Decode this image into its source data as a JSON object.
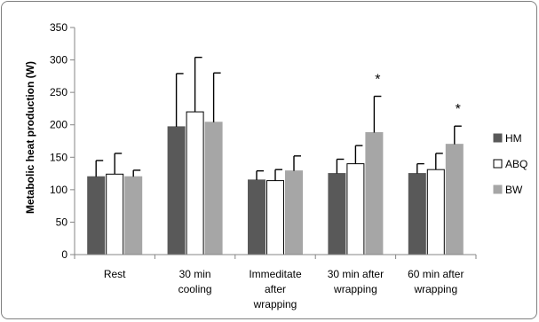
{
  "chart_data": {
    "type": "bar",
    "title": "",
    "xlabel": "",
    "ylabel": "Metabolic heat production (W)",
    "ylim": [
      0,
      350
    ],
    "yticks": [
      0,
      50,
      100,
      150,
      200,
      250,
      300,
      350
    ],
    "grid": false,
    "legend_position": "right",
    "categories": [
      [
        "Rest"
      ],
      [
        "30 min",
        "cooling"
      ],
      [
        "Immeditate",
        "after",
        "wrapping"
      ],
      [
        "30 min after",
        "wrapping"
      ],
      [
        "60 min after",
        "wrapping"
      ]
    ],
    "series": [
      {
        "name": "HM",
        "color": "#595959",
        "fill": "#595959",
        "stroke": "#595959",
        "values": [
          120,
          197,
          115,
          125,
          125
        ],
        "errors": [
          25,
          82,
          14,
          22,
          15
        ]
      },
      {
        "name": "ABQ",
        "color": "#ffffff",
        "fill": "#ffffff",
        "stroke": "#000000",
        "values": [
          124,
          220,
          114,
          140,
          131
        ],
        "errors": [
          32,
          84,
          17,
          28,
          25
        ]
      },
      {
        "name": "BW",
        "color": "#a6a6a6",
        "fill": "#a6a6a6",
        "stroke": "#a6a6a6",
        "values": [
          120,
          204,
          129,
          188,
          170
        ],
        "errors": [
          10,
          76,
          23,
          56,
          28
        ]
      }
    ],
    "annotations": [
      {
        "series": 2,
        "category": 3,
        "text": "*"
      },
      {
        "series": 2,
        "category": 4,
        "text": "*"
      }
    ]
  }
}
